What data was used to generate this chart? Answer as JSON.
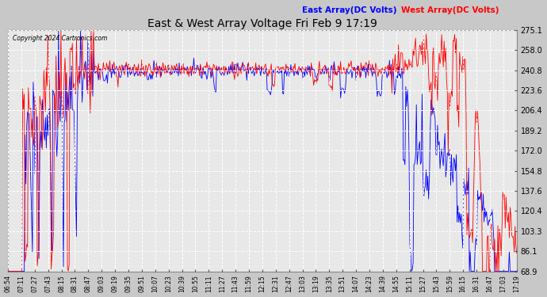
{
  "title": "East & West Array Voltage Fri Feb 9 17:19",
  "copyright": "Copyright 2024 Cartronics.com",
  "legend_east": "East Array(DC Volts)",
  "legend_west": "West Array(DC Volts)",
  "color_east": "blue",
  "color_west": "red",
  "bg_color": "#c8c8c8",
  "plot_bg_color": "#e8e8e8",
  "grid_color": "#ffffff",
  "yticks": [
    68.9,
    86.1,
    103.3,
    120.4,
    137.6,
    154.8,
    172.0,
    189.2,
    206.4,
    223.6,
    240.8,
    258.0,
    275.1
  ],
  "ymin": 68.9,
  "ymax": 275.1,
  "xtick_labels": [
    "06:54",
    "07:11",
    "07:27",
    "07:43",
    "08:15",
    "08:31",
    "08:47",
    "09:03",
    "09:19",
    "09:35",
    "09:51",
    "10:07",
    "10:23",
    "10:39",
    "10:55",
    "11:11",
    "11:27",
    "11:43",
    "11:59",
    "12:15",
    "12:31",
    "12:47",
    "13:03",
    "13:19",
    "13:35",
    "13:51",
    "14:07",
    "14:23",
    "14:39",
    "14:55",
    "15:11",
    "15:27",
    "15:43",
    "15:59",
    "16:15",
    "16:31",
    "16:47",
    "17:03",
    "17:19"
  ]
}
